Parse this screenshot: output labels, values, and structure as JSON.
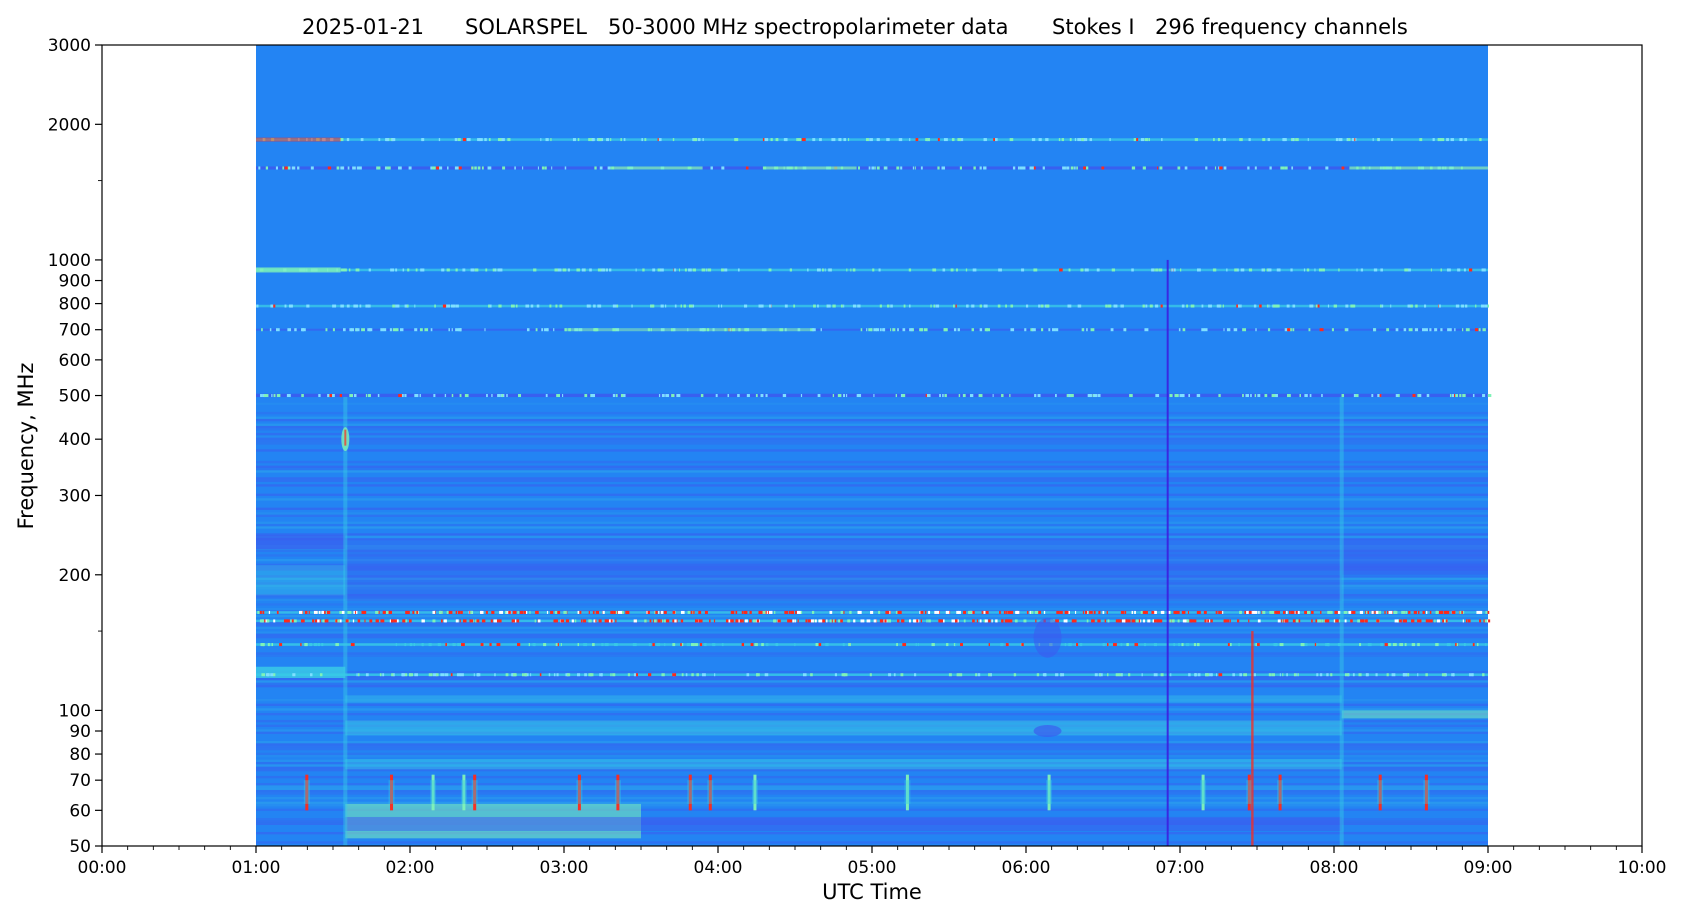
{
  "chart_data": {
    "type": "heatmap",
    "title_parts": [
      "2025-01-21",
      "SOLARSPEL",
      "50-3000 MHz spectropolarimeter data",
      "Stokes I",
      "296 frequency channels"
    ],
    "xlabel": "UTC Time",
    "ylabel": "Frequency, MHz",
    "x_axis": {
      "unit": "hours UTC",
      "range": [
        0,
        10
      ],
      "major_ticks": [
        0,
        1,
        2,
        3,
        4,
        5,
        6,
        7,
        8,
        9,
        10
      ],
      "major_tick_labels": [
        "00:00",
        "01:00",
        "02:00",
        "03:00",
        "04:00",
        "05:00",
        "06:00",
        "07:00",
        "08:00",
        "09:00",
        "10:00"
      ],
      "minor_ticks_per_hour": 6
    },
    "y_axis": {
      "scale": "log",
      "range": [
        50,
        3000
      ],
      "labeled_ticks": [
        50,
        60,
        70,
        80,
        90,
        100,
        200,
        300,
        400,
        500,
        600,
        700,
        800,
        900,
        1000,
        2000,
        3000
      ],
      "labeled_tick_labels": [
        "50",
        "60",
        "70",
        "80",
        "90",
        "100",
        "200",
        "300",
        "400",
        "500",
        "600",
        "700",
        "800",
        "900",
        "1000",
        "2000",
        "3000"
      ],
      "unlabeled_ticks": [
        150,
        1500
      ]
    },
    "data_extent": {
      "time_start": 1.0,
      "time_end": 9.0
    },
    "colormap": "rainbow",
    "colors": {
      "background": "#2384f3",
      "low": "#3b5cf0",
      "mid": "#38c9e6",
      "high": "#7ff3b7",
      "peak": "#ff2a1a"
    },
    "features": {
      "rfi_bands_mhz": [
        1850,
        1600,
        950,
        790,
        700,
        500,
        165,
        158,
        140,
        120
      ],
      "burst_times_h": [
        1.33,
        1.88,
        2.15,
        2.35,
        2.42,
        3.1,
        3.35,
        3.82,
        3.95,
        4.24,
        5.23,
        6.15,
        7.15,
        7.45,
        7.65,
        8.3,
        8.6
      ],
      "dark_vertical_line_time_h": 6.92,
      "red_vertical_line_time_h": 7.47,
      "transition_times_h": [
        1.58,
        8.05
      ]
    }
  }
}
